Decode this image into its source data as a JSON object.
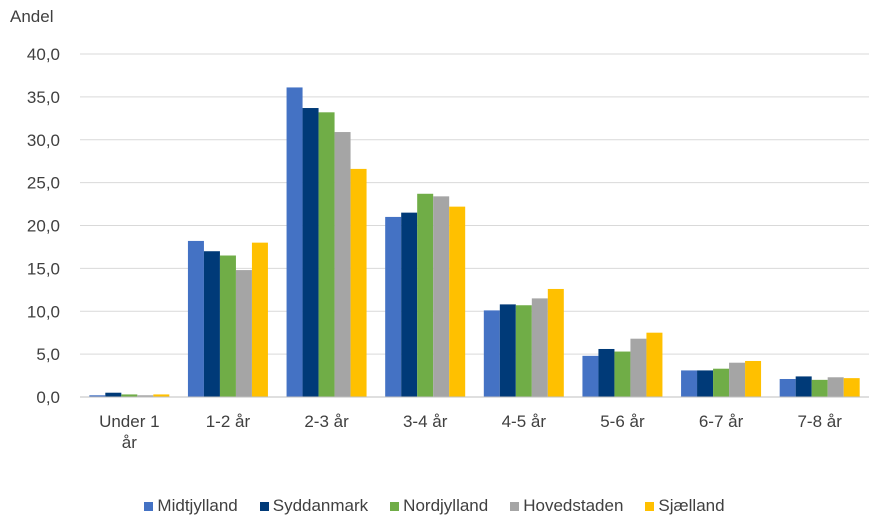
{
  "chart_data": {
    "type": "bar",
    "ylabel": "Andel",
    "ylim": [
      0,
      40
    ],
    "yticks": [
      "0,0",
      "5,0",
      "10,0",
      "15,0",
      "20,0",
      "25,0",
      "30,0",
      "35,0",
      "40,0"
    ],
    "categories": [
      [
        "Under 1",
        "år"
      ],
      [
        "1-2 år"
      ],
      [
        "2-3 år"
      ],
      [
        "3-4 år"
      ],
      [
        "4-5 år"
      ],
      [
        "5-6 år"
      ],
      [
        "6-7 år"
      ],
      [
        "7-8 år"
      ]
    ],
    "series": [
      {
        "name": "Midtjylland",
        "color": "#4472C4",
        "values": [
          0.2,
          18.2,
          36.1,
          21.0,
          10.1,
          4.8,
          3.1,
          2.1
        ]
      },
      {
        "name": "Syddanmark",
        "color": "#003A78",
        "values": [
          0.5,
          17.0,
          33.7,
          21.5,
          10.8,
          5.6,
          3.1,
          2.4
        ]
      },
      {
        "name": "Nordjylland",
        "color": "#70AD47",
        "values": [
          0.3,
          16.5,
          33.2,
          23.7,
          10.7,
          5.3,
          3.3,
          2.0
        ]
      },
      {
        "name": "Hovedstaden",
        "color": "#A5A5A5",
        "values": [
          0.2,
          14.8,
          30.9,
          23.4,
          11.5,
          6.8,
          4.0,
          2.3
        ]
      },
      {
        "name": "Sjælland",
        "color": "#FFC000",
        "values": [
          0.3,
          18.0,
          26.6,
          22.2,
          12.6,
          7.5,
          4.2,
          2.2
        ]
      }
    ],
    "grid": true,
    "legend_position": "bottom"
  }
}
